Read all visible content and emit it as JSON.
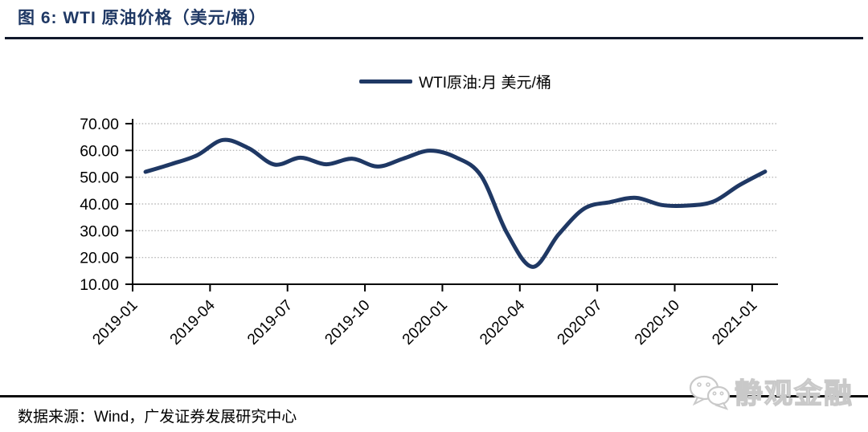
{
  "page": {
    "title": "图 6:  WTI 原油价格（美元/桶）",
    "source_note": "数据来源：Wind，广发证券发展研究中心",
    "watermark": "静观金融"
  },
  "legend": {
    "label": "WTI原油:月 美元/桶"
  },
  "colors": {
    "line": "#1F3864",
    "title": "#1F3864",
    "grid": "#b8b8b8",
    "axis": "#000000",
    "watermark_outline": "#c9c9c9"
  },
  "chart_data": {
    "type": "line",
    "title": "WTI 原油价格（美元/桶）",
    "legend_position": "top-center",
    "grid": "horizontal-dotted",
    "ylim": [
      10,
      70
    ],
    "y_ticks": [
      10,
      20,
      30,
      40,
      50,
      60,
      70
    ],
    "y_tick_format": "0.00",
    "x_tick_labels": [
      "2019-01",
      "2019-04",
      "2019-07",
      "2019-10",
      "2020-01",
      "2020-04",
      "2020-07",
      "2020-10",
      "2021-01"
    ],
    "x_tick_rotation": -45,
    "series": [
      {
        "name": "WTI原油:月 美元/桶",
        "x": [
          "2019-01",
          "2019-02",
          "2019-03",
          "2019-04",
          "2019-05",
          "2019-06",
          "2019-07",
          "2019-08",
          "2019-09",
          "2019-10",
          "2019-11",
          "2019-12",
          "2020-01",
          "2020-02",
          "2020-03",
          "2020-04",
          "2020-05",
          "2020-06",
          "2020-07",
          "2020-08",
          "2020-09",
          "2020-10",
          "2020-11",
          "2020-12",
          "2021-01"
        ],
        "values": [
          52.0,
          54.9,
          58.2,
          63.9,
          60.8,
          54.7,
          57.3,
          54.8,
          56.9,
          54.0,
          57.0,
          59.9,
          57.5,
          50.5,
          29.2,
          16.5,
          28.6,
          38.3,
          40.7,
          42.3,
          39.6,
          39.4,
          40.9,
          47.0,
          52.1
        ]
      }
    ]
  }
}
